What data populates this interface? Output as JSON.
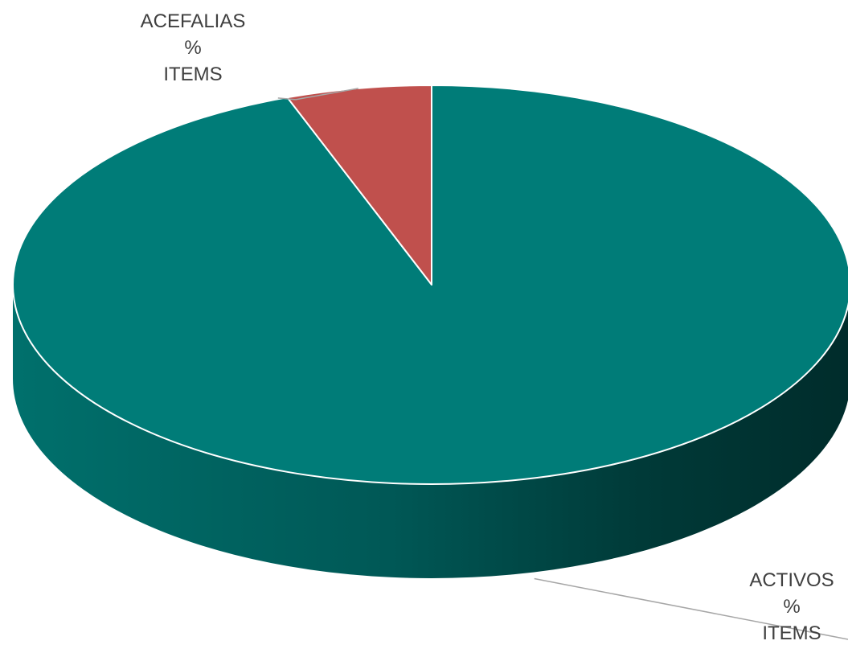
{
  "chart_data": {
    "type": "pie",
    "style": "3d",
    "slices": [
      {
        "category": "ACTIVOS",
        "series": "%",
        "value_label": "ITEMS",
        "value": 94.4,
        "color": "#007c78"
      },
      {
        "category": "ACEFALIAS",
        "series": "%",
        "value_label": "ITEMS",
        "value": 5.6,
        "color": "#c0504d"
      }
    ],
    "title": "",
    "legend": "none",
    "start_angle_deg": 0,
    "direction": "clockwise"
  }
}
